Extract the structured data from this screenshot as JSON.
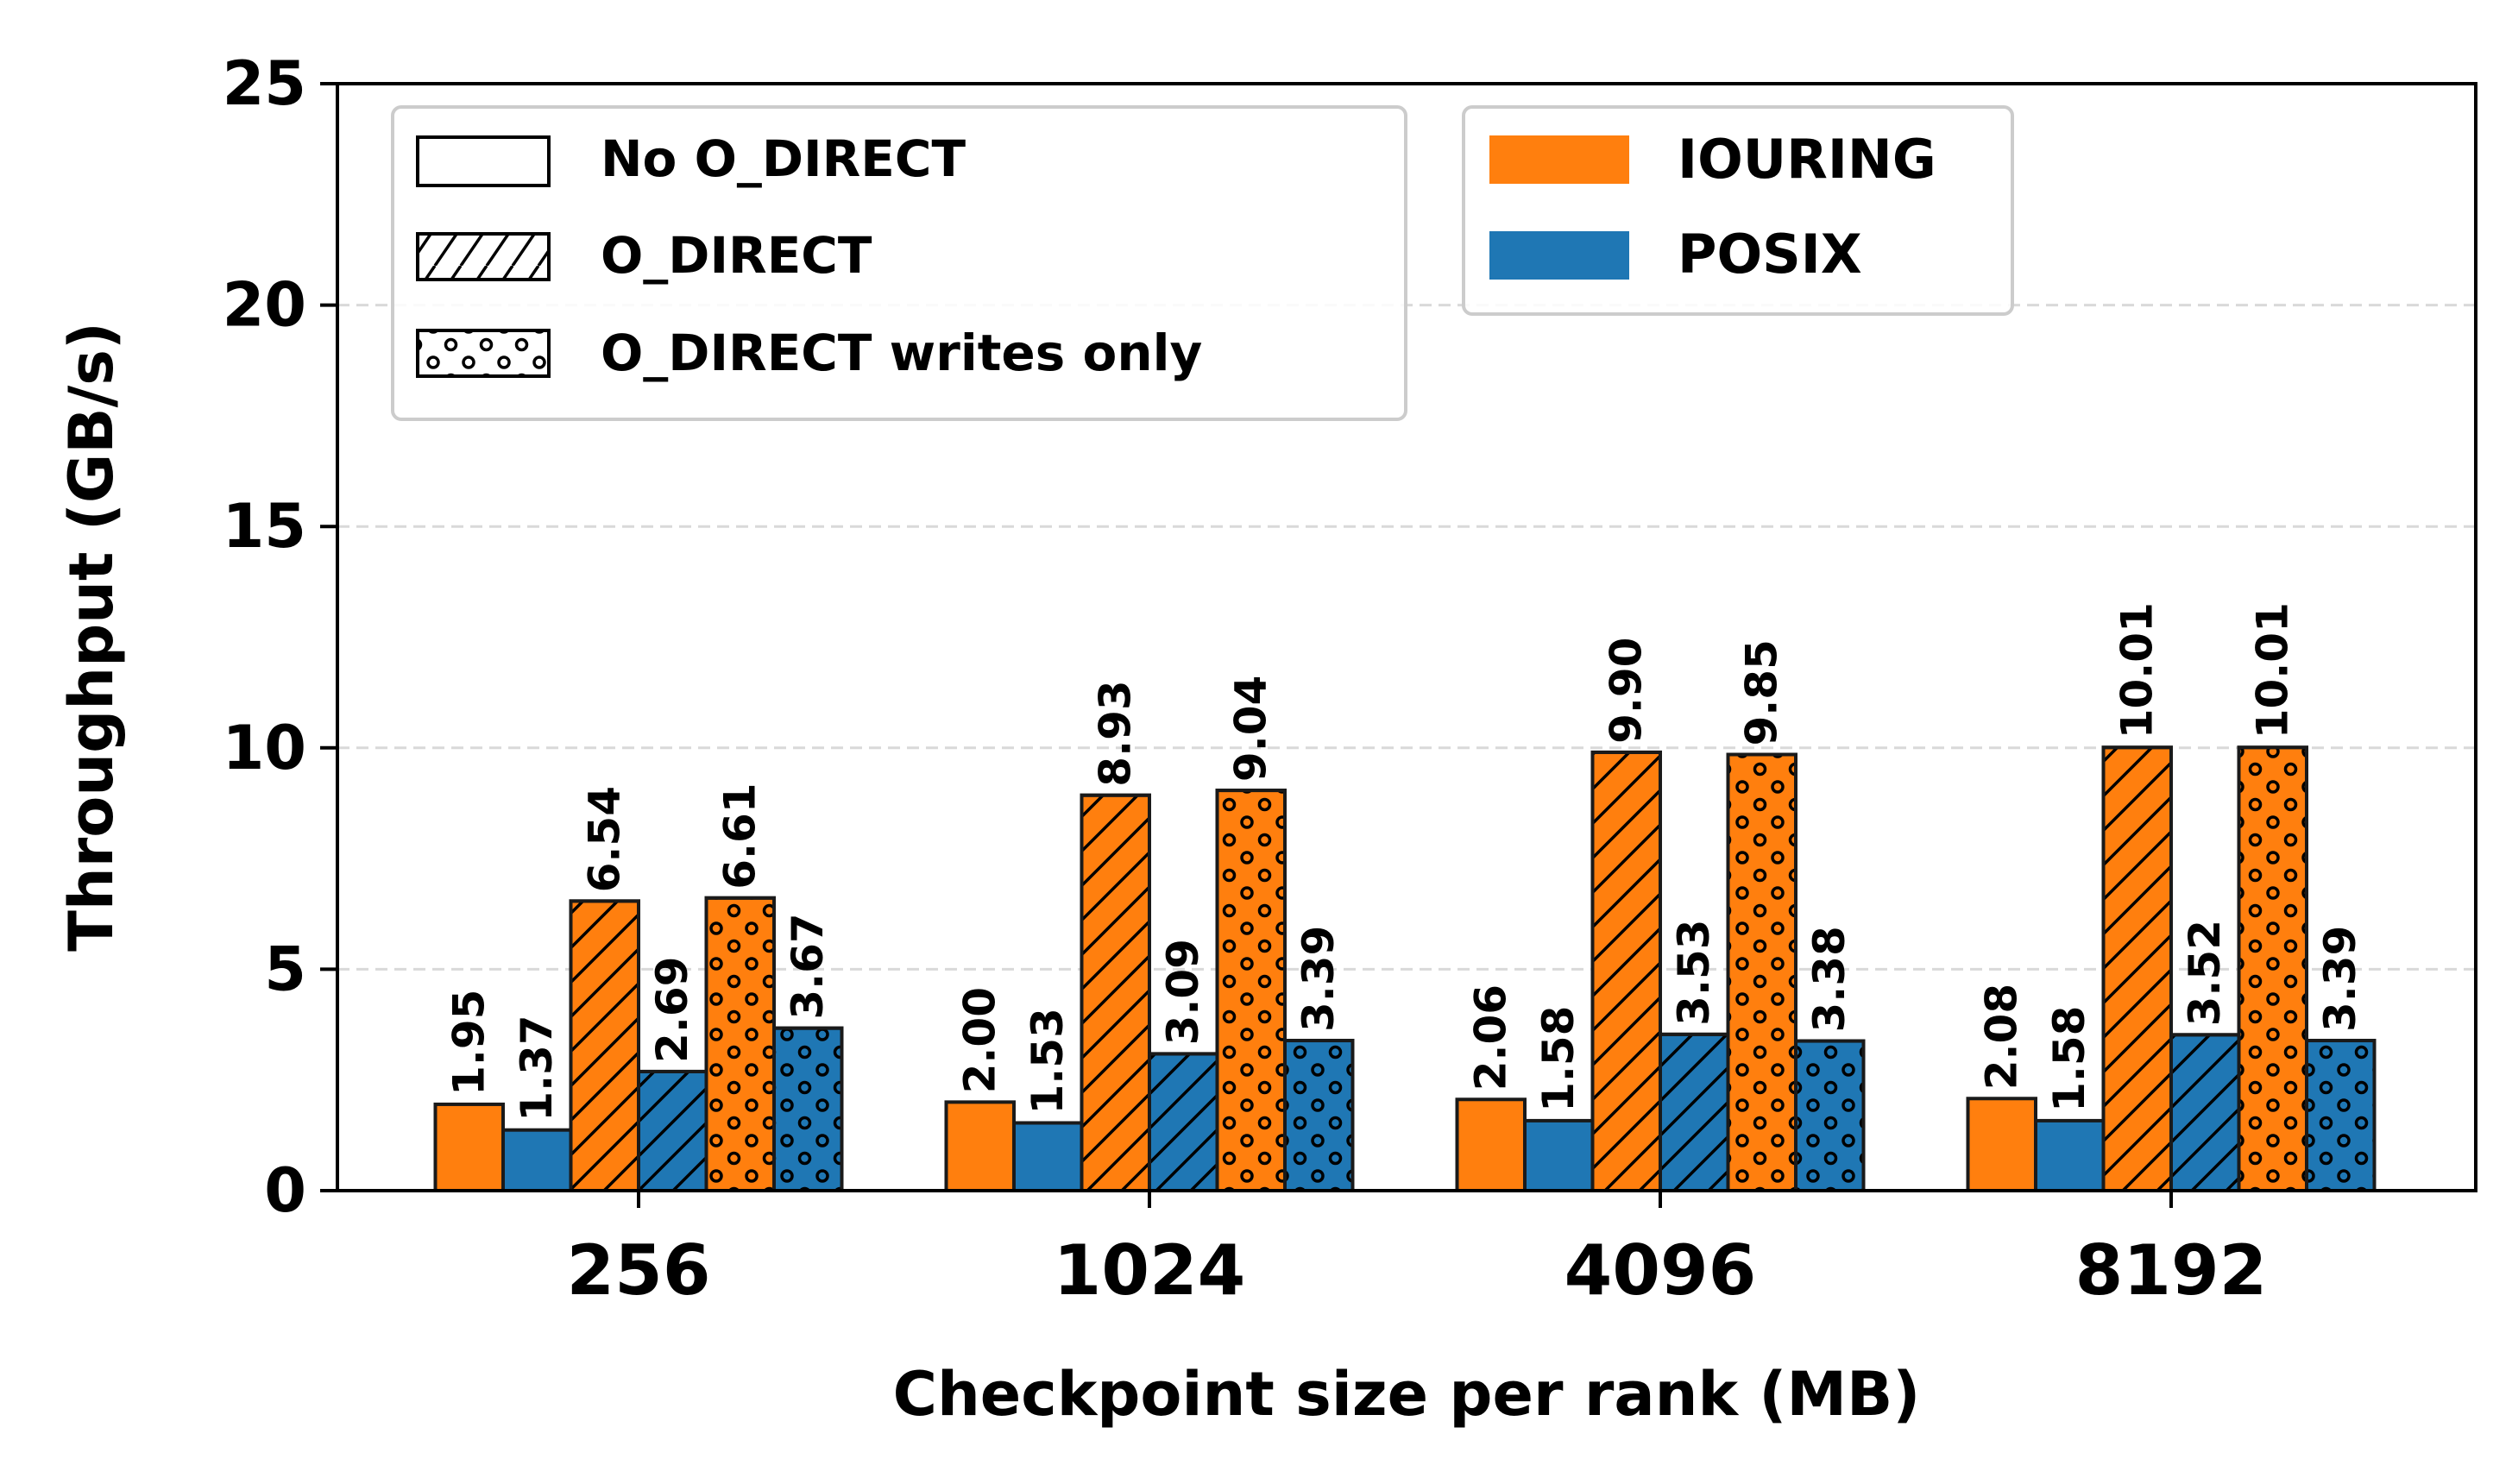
{
  "chart_data": {
    "type": "bar",
    "xlabel": "Checkpoint size per rank (MB)",
    "ylabel": "Throughput (GB/s)",
    "categories": [
      "256",
      "1024",
      "4096",
      "8192"
    ],
    "ylim": [
      0,
      25
    ],
    "yticks": [
      0,
      5,
      10,
      15,
      20,
      25
    ],
    "grid": "horizontal dashed",
    "series": [
      {
        "engine": "IOURING",
        "mode": "No O_DIRECT",
        "values": [
          1.95,
          2.0,
          2.06,
          2.08
        ]
      },
      {
        "engine": "POSIX",
        "mode": "No O_DIRECT",
        "values": [
          1.37,
          1.53,
          1.58,
          1.58
        ]
      },
      {
        "engine": "IOURING",
        "mode": "O_DIRECT",
        "values": [
          6.54,
          8.93,
          9.9,
          10.01
        ]
      },
      {
        "engine": "POSIX",
        "mode": "O_DIRECT",
        "values": [
          2.69,
          3.09,
          3.53,
          3.52
        ]
      },
      {
        "engine": "IOURING",
        "mode": "O_DIRECT writes only",
        "values": [
          6.61,
          9.04,
          9.85,
          10.01
        ]
      },
      {
        "engine": "POSIX",
        "mode": "O_DIRECT writes only",
        "values": [
          3.67,
          3.39,
          3.38,
          3.39
        ]
      }
    ],
    "value_labels": [
      [
        "1.95",
        "1.37",
        "6.54",
        "2.69",
        "6.61",
        "3.67"
      ],
      [
        "2.00",
        "1.53",
        "8.93",
        "3.09",
        "9.04",
        "3.39"
      ],
      [
        "2.06",
        "1.58",
        "9.90",
        "3.53",
        "9.85",
        "3.38"
      ],
      [
        "2.08",
        "1.58",
        "10.01",
        "3.52",
        "10.01",
        "3.39"
      ]
    ],
    "legend_modes": {
      "placement": "top-left",
      "entries": [
        {
          "label": "No O_DIRECT",
          "hatch": "none"
        },
        {
          "label": "O_DIRECT",
          "hatch": "diagonal"
        },
        {
          "label": "O_DIRECT writes only",
          "hatch": "dots"
        }
      ]
    },
    "legend_engines": {
      "placement": "top-center",
      "entries": [
        {
          "label": "IOURING",
          "color": "#ff7f0e"
        },
        {
          "label": "POSIX",
          "color": "#1f77b4"
        }
      ]
    },
    "colors": {
      "IOURING": "#ff7f0e",
      "POSIX": "#1f77b4"
    }
  }
}
